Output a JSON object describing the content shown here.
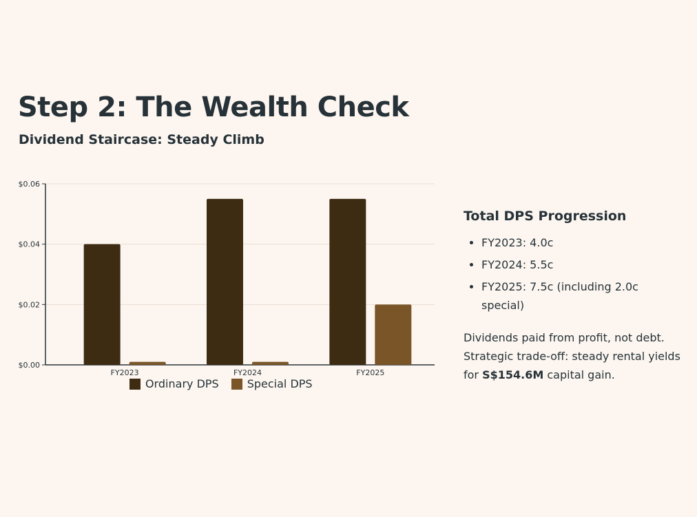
{
  "header": {
    "title": "Step 2: The Wealth Check",
    "subtitle": "Dividend Staircase: Steady Climb"
  },
  "chart_data": {
    "type": "bar",
    "categories": [
      "FY2023",
      "FY2024",
      "FY2025"
    ],
    "series": [
      {
        "name": "Ordinary DPS",
        "values": [
          0.04,
          0.055,
          0.055
        ],
        "color": "#3d2b12"
      },
      {
        "name": "Special DPS",
        "values": [
          0.001,
          0.001,
          0.02
        ],
        "color": "#7a5528"
      }
    ],
    "yticks": [
      "$0.00",
      "$0.02",
      "$0.04",
      "$0.06"
    ],
    "ylim": [
      0,
      0.06
    ],
    "grid": true,
    "legend_position": "bottom"
  },
  "side": {
    "heading": "Total DPS Progression",
    "items": [
      "FY2023: 4.0c",
      "FY2024: 5.5c",
      "FY2025: 7.5c (including 2.0c special)"
    ],
    "note_before": "Dividends paid from profit, not debt. Strategic trade-off: steady rental yields for ",
    "note_bold": "S$154.6M",
    "note_after": " capital gain."
  }
}
